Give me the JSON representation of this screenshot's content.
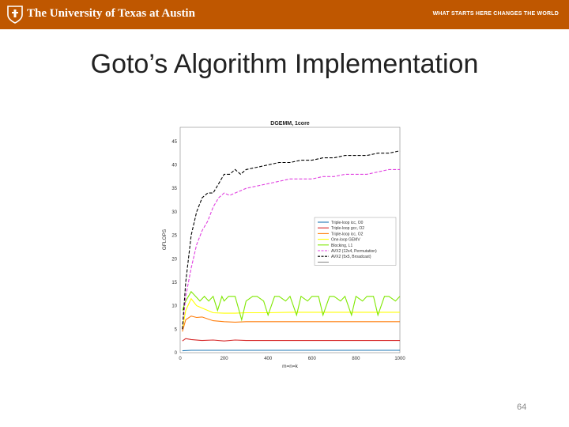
{
  "header": {
    "university_name": "The University of Texas at Austin",
    "tagline": "WHAT STARTS HERE CHANGES THE WORLD",
    "brand_color": "#bf5700"
  },
  "slide": {
    "title": "Goto’s Algorithm Implementation",
    "page_number": "64"
  },
  "chart_data": {
    "type": "line",
    "title": "DGEMM, 1core",
    "xlabel": "m=n=k",
    "ylabel": "GFLOPS",
    "xlim": [
      0,
      1000
    ],
    "ylim": [
      0,
      48
    ],
    "xticks": [
      0,
      200,
      400,
      600,
      800,
      1000
    ],
    "yticks": [
      0,
      5,
      10,
      15,
      20,
      25,
      30,
      35,
      40,
      45
    ],
    "grid": true,
    "legend_position": "right",
    "series": [
      {
        "name": "Triple-loop icc, O0",
        "color": "#1f77b4",
        "dash": "solid",
        "x": [
          10,
          50,
          100,
          200,
          300,
          400,
          500,
          600,
          700,
          800,
          900,
          1000
        ],
        "y": [
          0.4,
          0.5,
          0.5,
          0.5,
          0.5,
          0.5,
          0.5,
          0.5,
          0.5,
          0.5,
          0.5,
          0.5
        ]
      },
      {
        "name": "Triple-loop gcc, O2",
        "color": "#d62728",
        "dash": "solid",
        "x": [
          10,
          25,
          50,
          100,
          150,
          200,
          250,
          300,
          400,
          500,
          600,
          700,
          800,
          900,
          1000
        ],
        "y": [
          2.5,
          3.0,
          2.8,
          2.6,
          2.7,
          2.5,
          2.7,
          2.6,
          2.6,
          2.6,
          2.6,
          2.6,
          2.6,
          2.6,
          2.6
        ]
      },
      {
        "name": "Triple-loop icc, O2",
        "color": "#ff7f0e",
        "dash": "solid",
        "x": [
          10,
          25,
          50,
          75,
          100,
          150,
          200,
          250,
          300,
          400,
          500,
          600,
          700,
          800,
          900,
          1000
        ],
        "y": [
          4.5,
          7.0,
          7.8,
          7.5,
          7.6,
          6.8,
          6.6,
          6.5,
          6.6,
          6.6,
          6.6,
          6.6,
          6.6,
          6.6,
          6.6,
          6.6
        ]
      },
      {
        "name": "One-loop GEMV",
        "color": "#ffff00",
        "dash": "solid",
        "x": [
          10,
          25,
          50,
          75,
          100,
          150,
          200,
          250,
          300,
          400,
          500,
          600,
          700,
          800,
          900,
          1000
        ],
        "y": [
          5.0,
          9.0,
          11.5,
          10.0,
          9.5,
          8.5,
          8.4,
          8.4,
          8.5,
          8.5,
          8.6,
          8.6,
          8.6,
          8.6,
          8.6,
          8.6
        ]
      },
      {
        "name": "Blocking, L1",
        "color": "#7fe800",
        "dash": "solid",
        "x": [
          10,
          25,
          50,
          70,
          90,
          110,
          130,
          150,
          170,
          190,
          200,
          220,
          250,
          280,
          300,
          330,
          350,
          380,
          400,
          430,
          450,
          480,
          500,
          530,
          550,
          580,
          600,
          630,
          650,
          680,
          700,
          730,
          750,
          780,
          800,
          830,
          850,
          880,
          900,
          930,
          950,
          980,
          1000
        ],
        "y": [
          9,
          11,
          13,
          12,
          11,
          12,
          11,
          12,
          9,
          12,
          11,
          12,
          12,
          7,
          11,
          12,
          12,
          11,
          8,
          12,
          12,
          11,
          12,
          8,
          12,
          11,
          12,
          12,
          8,
          12,
          12,
          11,
          12,
          8,
          12,
          11,
          12,
          12,
          8,
          12,
          12,
          11,
          12
        ]
      },
      {
        "name": "AVX2 (12x4, Permutation)",
        "color": "#e040e0",
        "dash": "dashed",
        "x": [
          10,
          25,
          50,
          75,
          100,
          125,
          150,
          175,
          200,
          225,
          250,
          275,
          300,
          350,
          400,
          450,
          500,
          550,
          600,
          650,
          700,
          750,
          800,
          850,
          900,
          950,
          1000
        ],
        "y": [
          5,
          12,
          18,
          23,
          26,
          28,
          31,
          33,
          34,
          33.5,
          34,
          34.5,
          35,
          35.5,
          36,
          36.5,
          37,
          37,
          37,
          37.5,
          37.5,
          38,
          38,
          38,
          38.5,
          39,
          39
        ]
      },
      {
        "name": "AVX2 (5x5, Broadcast)",
        "color": "#000000",
        "dash": "dashed",
        "x": [
          10,
          25,
          50,
          75,
          100,
          125,
          150,
          175,
          200,
          225,
          250,
          275,
          300,
          350,
          400,
          450,
          500,
          550,
          600,
          650,
          700,
          750,
          800,
          850,
          900,
          950,
          1000
        ],
        "y": [
          5,
          15,
          25,
          30,
          33,
          34,
          34,
          36,
          38,
          38,
          39,
          38,
          39,
          39.5,
          40,
          40.5,
          40.5,
          41,
          41,
          41.5,
          41.5,
          42,
          42,
          42,
          42.5,
          42.5,
          43
        ]
      }
    ]
  }
}
